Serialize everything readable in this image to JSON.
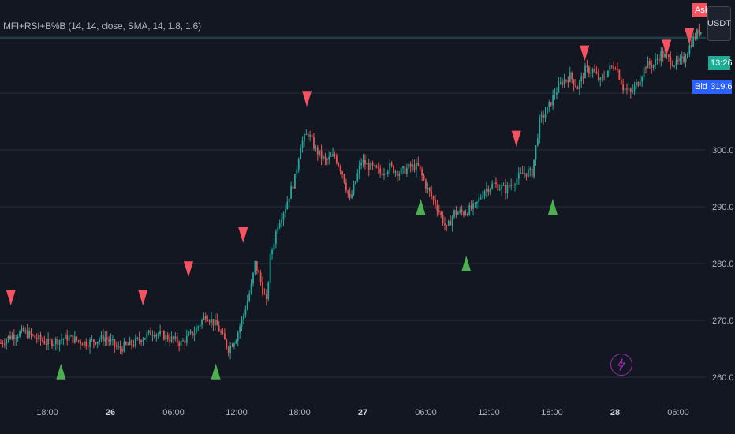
{
  "indicator": {
    "title": "MFI+RSI+B%B (14, 14, close, SMA, 14, 1.8, 1.6)"
  },
  "price_axis": {
    "currency": "USDT",
    "labels": [
      "300.0",
      "290.0",
      "280.0",
      "270.0",
      "260.0"
    ],
    "ask_label": "Ask",
    "timer": "13:26",
    "bid_label": "Bid",
    "bid_value": "319.6"
  },
  "time_axis": {
    "labels": [
      {
        "text": "18:00",
        "bold": false
      },
      {
        "text": "26",
        "bold": true
      },
      {
        "text": "06:00",
        "bold": false
      },
      {
        "text": "12:00",
        "bold": false
      },
      {
        "text": "18:00",
        "bold": false
      },
      {
        "text": "27",
        "bold": true
      },
      {
        "text": "06:00",
        "bold": false
      },
      {
        "text": "12:00",
        "bold": false
      },
      {
        "text": "18:00",
        "bold": false
      },
      {
        "text": "28",
        "bold": true
      },
      {
        "text": "06:00",
        "bold": false
      }
    ]
  },
  "colors": {
    "background": "#131722",
    "up": "#26a69a",
    "down": "#ef5350",
    "sell_signal": "#f7525f",
    "buy_signal": "#4caf50",
    "grid": "#2a2e39"
  },
  "icons": {
    "alert": "lightning-icon"
  },
  "chart_data": {
    "type": "candlestick",
    "ylim": [
      257,
      320
    ],
    "anchors": [
      [
        0,
        266
      ],
      [
        4,
        267
      ],
      [
        12,
        268
      ],
      [
        18,
        267
      ],
      [
        25,
        266
      ],
      [
        35,
        267
      ],
      [
        45,
        266
      ],
      [
        55,
        267
      ],
      [
        62,
        265
      ],
      [
        70,
        266
      ],
      [
        80,
        268
      ],
      [
        88,
        267
      ],
      [
        95,
        266
      ],
      [
        102,
        268
      ],
      [
        108,
        271
      ],
      [
        114,
        269
      ],
      [
        120,
        265
      ],
      [
        124,
        267
      ],
      [
        128,
        271
      ],
      [
        132,
        276
      ],
      [
        134,
        280
      ],
      [
        136,
        278
      ],
      [
        140,
        273
      ],
      [
        142,
        281
      ],
      [
        146,
        287
      ],
      [
        150,
        290
      ],
      [
        155,
        295
      ],
      [
        158,
        301
      ],
      [
        162,
        303
      ],
      [
        166,
        300
      ],
      [
        171,
        298
      ],
      [
        176,
        299
      ],
      [
        180,
        296
      ],
      [
        184,
        291
      ],
      [
        190,
        298
      ],
      [
        195,
        297
      ],
      [
        200,
        296
      ],
      [
        205,
        297
      ],
      [
        210,
        296
      ],
      [
        216,
        297
      ],
      [
        220,
        297
      ],
      [
        225,
        293
      ],
      [
        230,
        290
      ],
      [
        235,
        286
      ],
      [
        239,
        289
      ],
      [
        244,
        289
      ],
      [
        250,
        290
      ],
      [
        255,
        293
      ],
      [
        260,
        294
      ],
      [
        266,
        293
      ],
      [
        272,
        295
      ],
      [
        276,
        296
      ],
      [
        280,
        296
      ],
      [
        284,
        305
      ],
      [
        288,
        307
      ],
      [
        292,
        310
      ],
      [
        296,
        312
      ],
      [
        300,
        313
      ],
      [
        304,
        311
      ],
      [
        308,
        314
      ],
      [
        312,
        314
      ],
      [
        316,
        312
      ],
      [
        320,
        314
      ],
      [
        324,
        315
      ],
      [
        328,
        311
      ],
      [
        332,
        310
      ],
      [
        336,
        312
      ],
      [
        340,
        315
      ],
      [
        344,
        315
      ],
      [
        348,
        317
      ],
      [
        352,
        316
      ],
      [
        356,
        315
      ],
      [
        360,
        316
      ],
      [
        364,
        319
      ],
      [
        368,
        321
      ]
    ],
    "candle_count": 370,
    "signals": [
      {
        "type": "sell",
        "x": 1,
        "y": 274
      },
      {
        "type": "buy",
        "x": 12,
        "y": 261
      },
      {
        "type": "sell",
        "x": 30,
        "y": 274
      },
      {
        "type": "sell",
        "x": 40,
        "y": 279
      },
      {
        "type": "buy",
        "x": 46,
        "y": 261
      },
      {
        "type": "sell",
        "x": 52,
        "y": 285
      },
      {
        "type": "sell",
        "x": 66,
        "y": 309
      },
      {
        "type": "buy",
        "x": 91,
        "y": 290
      },
      {
        "type": "sell",
        "x": 112,
        "y": 302
      },
      {
        "type": "buy",
        "x": 101,
        "y": 280
      },
      {
        "type": "buy",
        "x": 120,
        "y": 290
      },
      {
        "type": "sell",
        "x": 127,
        "y": 317
      },
      {
        "type": "sell",
        "x": 145,
        "y": 318
      },
      {
        "type": "sell",
        "x": 150,
        "y": 320
      }
    ]
  }
}
